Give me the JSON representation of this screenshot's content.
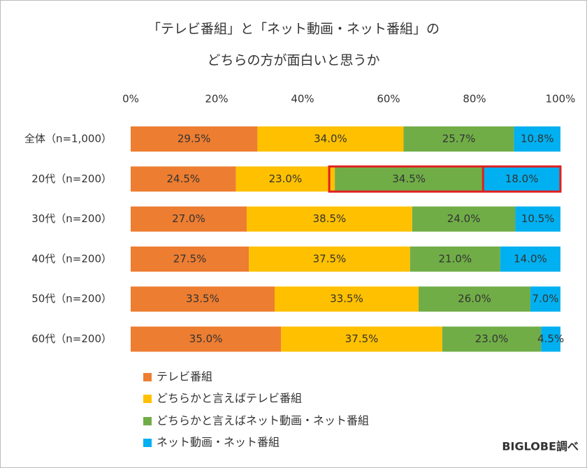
{
  "chart_data": {
    "type": "stacked-bar-horizontal",
    "title": [
      "「テレビ番組」と「ネット動画・ネット番組」の",
      "どちらの方が面白いと思うか"
    ],
    "categories": [
      "全体（n=1,000）",
      "20代（n=200）",
      "30代（n=200）",
      "40代（n=200）",
      "50代（n=200）",
      "60代（n=200）"
    ],
    "series": [
      {
        "name": "テレビ番組",
        "color": "#ED7D31",
        "values": [
          29.5,
          24.5,
          27.0,
          27.5,
          33.5,
          35.0
        ],
        "value_labels": [
          "29.5%",
          "24.5%",
          "27.0%",
          "27.5%",
          "33.5%",
          "35.0%"
        ]
      },
      {
        "name": "どちらかと言えばテレビ番組",
        "color": "#FFC000",
        "values": [
          34.0,
          23.0,
          38.5,
          37.5,
          33.5,
          37.5
        ],
        "value_labels": [
          "34.0%",
          "23.0%",
          "38.5%",
          "37.5%",
          "33.5%",
          "37.5%"
        ]
      },
      {
        "name": "どちらかと言えばネット動画・ネット番組",
        "color": "#70AD47",
        "values": [
          25.7,
          34.5,
          24.0,
          21.0,
          26.0,
          23.0
        ],
        "value_labels": [
          "25.7%",
          "34.5%",
          "24.0%",
          "21.0%",
          "26.0%",
          "23.0%"
        ]
      },
      {
        "name": "ネット動画・ネット番組",
        "color": "#00B0F0",
        "values": [
          10.8,
          18.0,
          10.5,
          14.0,
          7.0,
          4.5
        ],
        "value_labels": [
          "10.8%",
          "18.0%",
          "10.5%",
          "14.0%",
          "7.0%",
          "4.5%"
        ]
      }
    ],
    "xlim": [
      0,
      100
    ],
    "xticks": [
      {
        "value": 0,
        "label": "0%"
      },
      {
        "value": 20,
        "label": "20%"
      },
      {
        "value": 40,
        "label": "40%"
      },
      {
        "value": 60,
        "label": "60%"
      },
      {
        "value": 80,
        "label": "80%"
      },
      {
        "value": 100,
        "label": "100%"
      }
    ],
    "annotation": "BIGLOBE調べ"
  }
}
